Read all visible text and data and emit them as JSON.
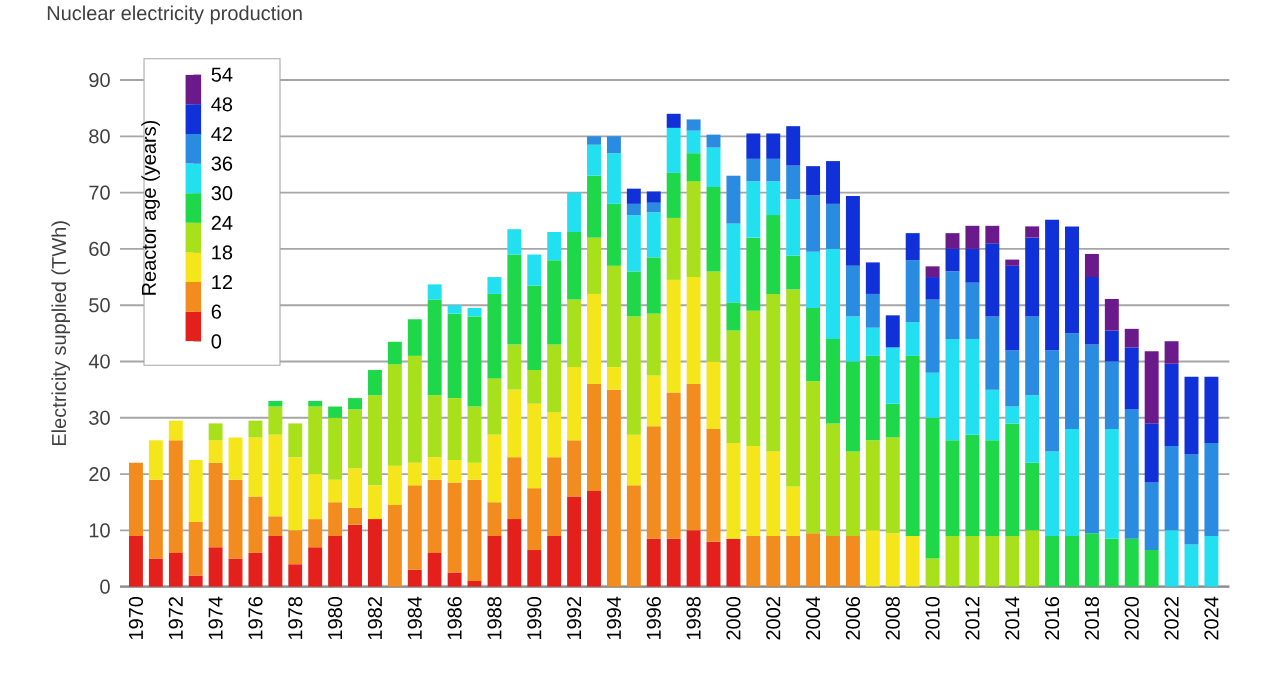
{
  "chart_data": {
    "type": "bar",
    "stacked": true,
    "title": "Nuclear electricity production",
    "ylabel": "Electricity supplied (TWh)",
    "clabel": "Reactor age (years)",
    "categories": [
      "1970",
      null,
      "1972",
      null,
      "1974",
      null,
      "1976",
      null,
      "1978",
      null,
      "1980",
      null,
      "1982",
      null,
      "1984",
      null,
      "1986",
      null,
      "1988",
      null,
      "1990",
      null,
      "1992",
      null,
      "1994",
      null,
      "1996",
      null,
      "1998",
      null,
      "2000",
      null,
      "2002",
      null,
      "2004",
      null,
      "2006",
      null,
      "2008",
      null,
      "2010",
      null,
      "2012",
      null,
      "2014",
      null,
      "2016",
      null,
      "2018",
      null,
      "2020",
      null,
      "2022",
      null,
      "2024"
    ],
    "series": [
      {
        "color": "#e4201c",
        "values": [
          9,
          5,
          6,
          2,
          7,
          5,
          6,
          9,
          4,
          7,
          9,
          11,
          12,
          null,
          3,
          6,
          2.5,
          1,
          9,
          12,
          6.5,
          9,
          16,
          17,
          null,
          null,
          8.5,
          8.5,
          10,
          8,
          8.5,
          null,
          null,
          null,
          null,
          null,
          null,
          null,
          null,
          null,
          null,
          null,
          null,
          null,
          null,
          null,
          null,
          null,
          null,
          null,
          null,
          null,
          null,
          null,
          null
        ]
      },
      {
        "color": "#f28c1e",
        "values": [
          13,
          14,
          20,
          9.5,
          15,
          14,
          10,
          3.5,
          6,
          5,
          6,
          3,
          null,
          14.5,
          15,
          13,
          16,
          18,
          6,
          11,
          11,
          14,
          10,
          19,
          35,
          18,
          20,
          26,
          26,
          20,
          null,
          9,
          9,
          9,
          9.5,
          9,
          9,
          null,
          null,
          null,
          null,
          null,
          null,
          null,
          null,
          null,
          null,
          null,
          null,
          null,
          null,
          null,
          null,
          null,
          null
        ]
      },
      {
        "color": "#f5e61c",
        "values": [
          null,
          7,
          3.5,
          11,
          4,
          7.5,
          10.5,
          14.5,
          13,
          8,
          4,
          7,
          6,
          7,
          4,
          4,
          4,
          3,
          12,
          12,
          15,
          8,
          13,
          16,
          4,
          9,
          9,
          20,
          19,
          12,
          17,
          16,
          15,
          8.8,
          null,
          null,
          null,
          10,
          9.5,
          9,
          null,
          null,
          null,
          null,
          null,
          null,
          null,
          null,
          null,
          null,
          null,
          null,
          null,
          null,
          null
        ]
      },
      {
        "color": "#a8e01c",
        "values": [
          null,
          null,
          null,
          null,
          3,
          null,
          3,
          5,
          6,
          12,
          11,
          10.5,
          16,
          18,
          19,
          11,
          11,
          10,
          10,
          8,
          6,
          12,
          12,
          10,
          18,
          21,
          11,
          11,
          17,
          16,
          20,
          24,
          28,
          35,
          27,
          20,
          15,
          16,
          17,
          null,
          5,
          9,
          9,
          9,
          9,
          10,
          null,
          null,
          null,
          null,
          null,
          null,
          null,
          null,
          null
        ]
      },
      {
        "color": "#1fd84a",
        "values": [
          null,
          null,
          null,
          null,
          null,
          null,
          null,
          1,
          null,
          1,
          2,
          2,
          4.5,
          4,
          6.5,
          17,
          15,
          16,
          15,
          16,
          15,
          15,
          12,
          11,
          11,
          8,
          10,
          8,
          5,
          15,
          5,
          13,
          14,
          6,
          13,
          15,
          16,
          15,
          6,
          32,
          25,
          17,
          18,
          17,
          20,
          12,
          9,
          9,
          9.5,
          8.5,
          8.5,
          6.5,
          null,
          null,
          null
        ]
      },
      {
        "color": "#22e0f0",
        "values": [
          null,
          null,
          null,
          null,
          null,
          null,
          null,
          null,
          null,
          null,
          null,
          null,
          null,
          null,
          null,
          2.7,
          1.5,
          1.5,
          3,
          4.5,
          5.5,
          5,
          7,
          5.5,
          9,
          10,
          8,
          8,
          4,
          7,
          14,
          10,
          6,
          10,
          10,
          16,
          8,
          5,
          10,
          6,
          8,
          18,
          17,
          9,
          3,
          12,
          15,
          19,
          null,
          19.5,
          null,
          null,
          10,
          7.5,
          9
        ]
      },
      {
        "color": "#2a8ce0",
        "values": [
          null,
          null,
          null,
          null,
          null,
          null,
          null,
          null,
          null,
          null,
          null,
          null,
          null,
          null,
          null,
          null,
          null,
          null,
          null,
          null,
          null,
          null,
          null,
          1.5,
          3,
          2,
          1.7,
          null,
          2,
          2.3,
          8.5,
          4,
          4,
          6,
          10,
          8,
          9,
          6,
          null,
          11,
          13,
          12,
          10,
          13,
          10,
          14,
          18,
          17,
          33.5,
          12,
          23,
          12,
          15,
          16,
          16.5
        ]
      },
      {
        "color": "#1030d8",
        "values": [
          null,
          null,
          null,
          null,
          null,
          null,
          null,
          null,
          null,
          null,
          null,
          null,
          null,
          null,
          null,
          null,
          null,
          null,
          null,
          null,
          null,
          null,
          null,
          null,
          null,
          2.7,
          2,
          2.5,
          null,
          null,
          null,
          4.5,
          4.5,
          7,
          5.2,
          7.6,
          12.4,
          5.6,
          5.7,
          4.8,
          4,
          4,
          6,
          13,
          15,
          14,
          23.2,
          19,
          12,
          5.5,
          11,
          10.5,
          14.6,
          13.8,
          11.8
        ]
      },
      {
        "color": "#6a1a8a",
        "values": [
          null,
          null,
          null,
          null,
          null,
          null,
          null,
          null,
          null,
          null,
          null,
          null,
          null,
          null,
          null,
          null,
          null,
          null,
          null,
          null,
          null,
          null,
          null,
          null,
          null,
          null,
          null,
          null,
          null,
          null,
          null,
          null,
          null,
          null,
          null,
          null,
          null,
          null,
          null,
          null,
          1.9,
          2.8,
          4.1,
          3.1,
          1.1,
          2,
          null,
          null,
          4.1,
          5.6,
          3.3,
          12.8,
          4,
          null,
          null
        ]
      }
    ],
    "ylim": [
      0,
      90
    ],
    "yticks": [
      0,
      10,
      20,
      30,
      40,
      50,
      60,
      70,
      80,
      90
    ],
    "grid": "y",
    "annotations": [
      "0",
      "6",
      "12",
      "18",
      "24",
      "30",
      "36",
      "42",
      "48",
      "54"
    ]
  }
}
